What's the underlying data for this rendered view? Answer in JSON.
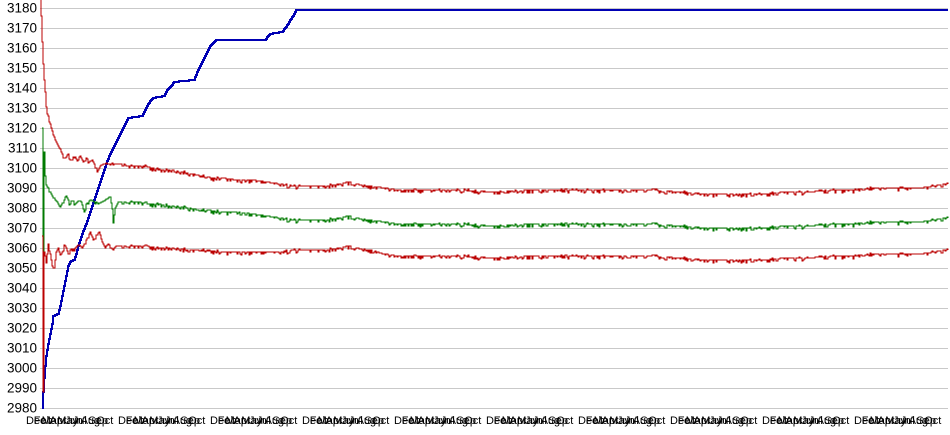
{
  "window": {
    "background": "#ffffff"
  },
  "chart_data": {
    "type": "line",
    "title": "",
    "xlabel": "",
    "ylabel": "",
    "grid": "horizontal-only",
    "legend": "none",
    "ylim": [
      2980,
      3180
    ],
    "y_ticks": [
      2980,
      2990,
      3000,
      3010,
      3020,
      3030,
      3040,
      3050,
      3060,
      3070,
      3080,
      3090,
      3100,
      3110,
      3120,
      3130,
      3140,
      3150,
      3160,
      3170,
      3180
    ],
    "x_axis": {
      "months": [
        "Dec",
        "Feb",
        "Mar",
        "Apr",
        "May",
        "Jun",
        "Jul",
        "Aug",
        "Sep",
        "Oct"
      ],
      "cluster_starts": [
        26,
        118,
        210,
        302,
        394,
        486,
        578,
        670,
        762,
        854
      ],
      "month_spacing": 7.8,
      "note": "month labels heavily overlapping (unreadable smudge in source)"
    },
    "colors": {
      "grid": "#c9c9c9",
      "axis_text": "#000000",
      "blue_line": "#0000b4",
      "red_line": "#bb0000",
      "green_line": "#007a00",
      "background": "#ffffff"
    },
    "series": [
      {
        "name": "cumulative-blue-line",
        "color": "#0000b4",
        "stroke_width": 2,
        "noise": 0,
        "points": [
          [
            2,
            2980
          ],
          [
            3,
            2988
          ],
          [
            4,
            2995
          ],
          [
            5,
            3001
          ],
          [
            6,
            3006
          ],
          [
            8,
            3012
          ],
          [
            10,
            3017
          ],
          [
            12,
            3022
          ],
          [
            13,
            3026
          ],
          [
            18,
            3027
          ],
          [
            20,
            3031
          ],
          [
            22,
            3036
          ],
          [
            24,
            3041
          ],
          [
            26,
            3046
          ],
          [
            28,
            3051
          ],
          [
            30,
            3053
          ],
          [
            34,
            3054
          ],
          [
            36,
            3057
          ],
          [
            38,
            3061
          ],
          [
            42,
            3067
          ],
          [
            46,
            3072
          ],
          [
            50,
            3078
          ],
          [
            54,
            3084
          ],
          [
            58,
            3090
          ],
          [
            62,
            3096
          ],
          [
            66,
            3102
          ],
          [
            70,
            3107
          ],
          [
            74,
            3111
          ],
          [
            78,
            3115
          ],
          [
            82,
            3119
          ],
          [
            86,
            3123
          ],
          [
            88,
            3125
          ],
          [
            102,
            3126
          ],
          [
            105,
            3129
          ],
          [
            108,
            3132
          ],
          [
            111,
            3134
          ],
          [
            113,
            3135
          ],
          [
            124,
            3136
          ],
          [
            127,
            3139
          ],
          [
            131,
            3141
          ],
          [
            134,
            3143
          ],
          [
            154,
            3144
          ],
          [
            158,
            3149
          ],
          [
            162,
            3153
          ],
          [
            166,
            3157
          ],
          [
            170,
            3161
          ],
          [
            174,
            3163
          ],
          [
            176,
            3164
          ],
          [
            225,
            3164
          ],
          [
            228,
            3166
          ],
          [
            230,
            3167
          ],
          [
            242,
            3168
          ],
          [
            245,
            3170
          ],
          [
            248,
            3172
          ],
          [
            250,
            3174
          ],
          [
            253,
            3176
          ],
          [
            256,
            3179
          ],
          [
            908,
            3179
          ]
        ]
      },
      {
        "name": "upper-band-red-line",
        "color": "#bb0000",
        "stroke_width": 1.3,
        "noise": 1.1,
        "points": [
          [
            0,
            3186
          ],
          [
            1,
            3176
          ],
          [
            2,
            3163
          ],
          [
            3,
            3152
          ],
          [
            4,
            3144
          ],
          [
            5,
            3138
          ],
          [
            6,
            3132
          ],
          [
            7,
            3128
          ],
          [
            9,
            3124
          ],
          [
            11,
            3120
          ],
          [
            13,
            3117
          ],
          [
            16,
            3113
          ],
          [
            19,
            3110
          ],
          [
            22,
            3107
          ],
          [
            25,
            3105
          ],
          [
            28,
            3107
          ],
          [
            31,
            3104
          ],
          [
            34,
            3106
          ],
          [
            37,
            3104
          ],
          [
            40,
            3106
          ],
          [
            43,
            3103
          ],
          [
            46,
            3105
          ],
          [
            49,
            3103
          ],
          [
            52,
            3104
          ],
          [
            55,
            3101
          ],
          [
            57,
            3098
          ],
          [
            60,
            3101
          ],
          [
            64,
            3102
          ],
          [
            72,
            3102
          ],
          [
            82,
            3102
          ],
          [
            92,
            3101
          ],
          [
            102,
            3101
          ],
          [
            112,
            3100
          ],
          [
            122,
            3099
          ],
          [
            132,
            3099
          ],
          [
            142,
            3098
          ],
          [
            152,
            3097
          ],
          [
            162,
            3096
          ],
          [
            172,
            3095
          ],
          [
            182,
            3095
          ],
          [
            196,
            3094
          ],
          [
            212,
            3094
          ],
          [
            226,
            3093
          ],
          [
            240,
            3092
          ],
          [
            254,
            3091
          ],
          [
            270,
            3091
          ],
          [
            286,
            3091
          ],
          [
            300,
            3092
          ],
          [
            308,
            3093
          ],
          [
            316,
            3092
          ],
          [
            330,
            3091
          ],
          [
            344,
            3090
          ],
          [
            358,
            3089
          ],
          [
            380,
            3089
          ],
          [
            420,
            3089
          ],
          [
            455,
            3088
          ],
          [
            490,
            3089
          ],
          [
            530,
            3089
          ],
          [
            570,
            3089
          ],
          [
            610,
            3089
          ],
          [
            640,
            3088
          ],
          [
            665,
            3087
          ],
          [
            700,
            3087
          ],
          [
            725,
            3087
          ],
          [
            745,
            3088
          ],
          [
            770,
            3088
          ],
          [
            790,
            3089
          ],
          [
            815,
            3089
          ],
          [
            835,
            3090
          ],
          [
            860,
            3090
          ],
          [
            880,
            3090
          ],
          [
            894,
            3091
          ],
          [
            904,
            3092
          ],
          [
            908,
            3092
          ]
        ]
      },
      {
        "name": "mean-green-line",
        "color": "#007a00",
        "stroke_width": 1.3,
        "noise": 1.1,
        "points": [
          [
            2,
            3120
          ],
          [
            3,
            3047
          ],
          [
            4,
            3108
          ],
          [
            5,
            3096
          ],
          [
            6,
            3093
          ],
          [
            8,
            3090
          ],
          [
            10,
            3088
          ],
          [
            12,
            3086
          ],
          [
            14,
            3085
          ],
          [
            17,
            3083
          ],
          [
            20,
            3080
          ],
          [
            23,
            3084
          ],
          [
            26,
            3086
          ],
          [
            29,
            3083
          ],
          [
            32,
            3084
          ],
          [
            35,
            3082
          ],
          [
            38,
            3084
          ],
          [
            41,
            3083
          ],
          [
            44,
            3078
          ],
          [
            46,
            3082
          ],
          [
            50,
            3084
          ],
          [
            54,
            3083
          ],
          [
            58,
            3082
          ],
          [
            62,
            3083
          ],
          [
            66,
            3084
          ],
          [
            70,
            3086
          ],
          [
            72,
            3079
          ],
          [
            73,
            3073
          ],
          [
            75,
            3080
          ],
          [
            78,
            3083
          ],
          [
            88,
            3083
          ],
          [
            98,
            3083
          ],
          [
            108,
            3082
          ],
          [
            118,
            3082
          ],
          [
            128,
            3081
          ],
          [
            138,
            3081
          ],
          [
            148,
            3080
          ],
          [
            158,
            3079
          ],
          [
            168,
            3079
          ],
          [
            180,
            3078
          ],
          [
            196,
            3078
          ],
          [
            212,
            3077
          ],
          [
            226,
            3076
          ],
          [
            240,
            3075
          ],
          [
            254,
            3074
          ],
          [
            270,
            3074
          ],
          [
            286,
            3074
          ],
          [
            300,
            3075
          ],
          [
            308,
            3076
          ],
          [
            316,
            3075
          ],
          [
            330,
            3074
          ],
          [
            344,
            3073
          ],
          [
            358,
            3072
          ],
          [
            380,
            3072
          ],
          [
            420,
            3072
          ],
          [
            455,
            3071
          ],
          [
            490,
            3072
          ],
          [
            530,
            3072
          ],
          [
            570,
            3072
          ],
          [
            610,
            3072
          ],
          [
            640,
            3071
          ],
          [
            665,
            3070
          ],
          [
            700,
            3070
          ],
          [
            725,
            3070
          ],
          [
            745,
            3071
          ],
          [
            770,
            3071
          ],
          [
            790,
            3072
          ],
          [
            815,
            3072
          ],
          [
            835,
            3073
          ],
          [
            860,
            3073
          ],
          [
            880,
            3073
          ],
          [
            894,
            3074
          ],
          [
            904,
            3075
          ],
          [
            908,
            3075
          ]
        ]
      },
      {
        "name": "lower-band-red-line",
        "color": "#bb0000",
        "stroke_width": 1.3,
        "noise": 1.1,
        "points": [
          [
            2,
            3066
          ],
          [
            3,
            2988
          ],
          [
            4,
            3058
          ],
          [
            6,
            3054
          ],
          [
            8,
            3062
          ],
          [
            10,
            3057
          ],
          [
            12,
            3051
          ],
          [
            14,
            3050
          ],
          [
            16,
            3058
          ],
          [
            18,
            3060
          ],
          [
            20,
            3056
          ],
          [
            22,
            3058
          ],
          [
            24,
            3062
          ],
          [
            26,
            3060
          ],
          [
            28,
            3057
          ],
          [
            30,
            3060
          ],
          [
            32,
            3059
          ],
          [
            35,
            3060
          ],
          [
            38,
            3062
          ],
          [
            42,
            3060
          ],
          [
            46,
            3064
          ],
          [
            50,
            3068
          ],
          [
            53,
            3064
          ],
          [
            56,
            3066
          ],
          [
            59,
            3068
          ],
          [
            62,
            3063
          ],
          [
            65,
            3060
          ],
          [
            68,
            3062
          ],
          [
            72,
            3059
          ],
          [
            76,
            3061
          ],
          [
            86,
            3061
          ],
          [
            96,
            3061
          ],
          [
            106,
            3061
          ],
          [
            116,
            3060
          ],
          [
            126,
            3060
          ],
          [
            136,
            3060
          ],
          [
            146,
            3059
          ],
          [
            156,
            3059
          ],
          [
            166,
            3059
          ],
          [
            180,
            3058
          ],
          [
            196,
            3058
          ],
          [
            212,
            3058
          ],
          [
            226,
            3058
          ],
          [
            240,
            3058
          ],
          [
            254,
            3059
          ],
          [
            270,
            3059
          ],
          [
            286,
            3059
          ],
          [
            300,
            3060
          ],
          [
            308,
            3061
          ],
          [
            316,
            3060
          ],
          [
            330,
            3059
          ],
          [
            344,
            3057
          ],
          [
            358,
            3056
          ],
          [
            380,
            3056
          ],
          [
            420,
            3056
          ],
          [
            455,
            3055
          ],
          [
            490,
            3056
          ],
          [
            530,
            3056
          ],
          [
            570,
            3056
          ],
          [
            610,
            3056
          ],
          [
            640,
            3055
          ],
          [
            665,
            3054
          ],
          [
            700,
            3054
          ],
          [
            725,
            3054
          ],
          [
            745,
            3055
          ],
          [
            770,
            3055
          ],
          [
            790,
            3056
          ],
          [
            815,
            3056
          ],
          [
            835,
            3057
          ],
          [
            860,
            3057
          ],
          [
            880,
            3057
          ],
          [
            894,
            3058
          ],
          [
            904,
            3059
          ],
          [
            908,
            3059
          ]
        ]
      }
    ]
  }
}
